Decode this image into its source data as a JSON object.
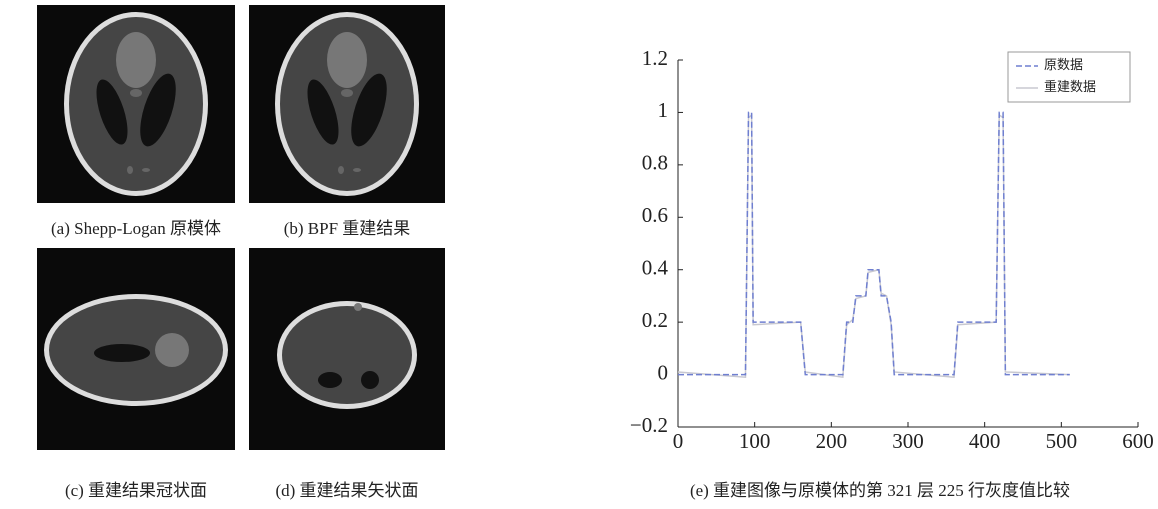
{
  "captions": [
    "(a) Shepp-Logan 原模体",
    "(b) BPF 重建结果",
    "(c) 重建结果冠状面",
    "(d) 重建结果矢状面"
  ],
  "chart_data": {
    "type": "line",
    "caption": "(e) 重建图像与原模体的第 321 层 225 行灰度值比较",
    "x": [
      0,
      88,
      92,
      96,
      98,
      160,
      166,
      215,
      220,
      228,
      232,
      245,
      248,
      262,
      265,
      272,
      278,
      282,
      360,
      365,
      415,
      419,
      424,
      427,
      511
    ],
    "series": [
      {
        "name": "原数据",
        "color": "#6f7fd0",
        "dash": true,
        "values": [
          0,
          0,
          1,
          1,
          0.2,
          0.2,
          0,
          0,
          0.2,
          0.2,
          0.3,
          0.3,
          0.4,
          0.4,
          0.3,
          0.3,
          0.2,
          0,
          0,
          0.2,
          0.2,
          1,
          1,
          0,
          0
        ]
      },
      {
        "name": "重建数据",
        "color": "#c8c8d0",
        "dash": false,
        "values": [
          0.01,
          -0.01,
          0.98,
          0.99,
          0.19,
          0.2,
          0.01,
          -0.01,
          0.19,
          0.21,
          0.29,
          0.3,
          0.39,
          0.4,
          0.31,
          0.3,
          0.19,
          0.01,
          -0.01,
          0.19,
          0.2,
          0.99,
          0.98,
          0.01,
          0
        ]
      }
    ],
    "xlim": [
      0,
      600
    ],
    "xticks": [
      0,
      100,
      200,
      300,
      400,
      500,
      600
    ],
    "ylim": [
      -0.2,
      1.2
    ],
    "yticks": [
      {
        "value": -0.2,
        "label": "−0.2"
      },
      0,
      0.2,
      0.4,
      0.6,
      0.8,
      1,
      1.2
    ],
    "legend": "upper-right"
  }
}
